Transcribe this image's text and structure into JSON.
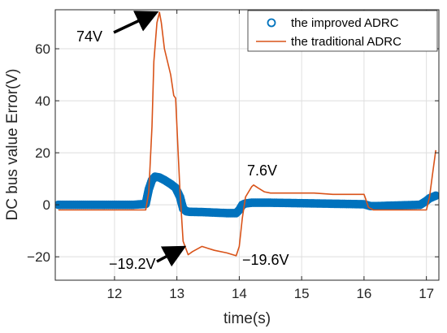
{
  "chart_data": {
    "type": "line",
    "xlabel": "time(s)",
    "ylabel": "DC bus value Error(V)",
    "xlim": [
      11.05,
      17.2
    ],
    "ylim": [
      -29,
      75
    ],
    "xticks": [
      12,
      13,
      14,
      15,
      16,
      17
    ],
    "yticks": [
      -20,
      0,
      20,
      40,
      60
    ],
    "xtick_labels": [
      "12",
      "13",
      "14",
      "15",
      "16",
      "17"
    ],
    "ytick_labels": [
      "−20",
      "0",
      "20",
      "40",
      "60"
    ],
    "grid": true,
    "legend_position": "top-right",
    "colors": {
      "improved": "#0072BD",
      "traditional": "#D95319",
      "grid": "#dedede",
      "axes": "#262626"
    },
    "series": [
      {
        "name": "the improved ADRC",
        "marker": "circle",
        "x": [
          11.1,
          11.5,
          12.0,
          12.3,
          12.5,
          12.55,
          12.6,
          12.65,
          12.72,
          12.8,
          12.9,
          12.98,
          13.05,
          13.1,
          13.15,
          13.2,
          13.4,
          13.6,
          13.8,
          13.95,
          14.0,
          14.05,
          14.1,
          14.2,
          14.5,
          15.0,
          15.5,
          16.0,
          16.1,
          16.2,
          16.5,
          16.9,
          17.0,
          17.05,
          17.1,
          17.15
        ],
        "y": [
          0,
          0,
          0,
          0,
          0.3,
          6,
          9.5,
          10.8,
          10.5,
          9.5,
          8,
          6.5,
          3,
          -1.5,
          -2.5,
          -2.7,
          -2.8,
          -3,
          -3.2,
          -3.2,
          -2,
          0,
          0.5,
          0.8,
          0.8,
          0.6,
          0.4,
          0.2,
          -0.5,
          -0.5,
          -0.3,
          0,
          1.5,
          2.5,
          3,
          3.5
        ]
      },
      {
        "name": "the traditional ADRC",
        "marker": "none",
        "x": [
          11.1,
          11.5,
          12.0,
          12.3,
          12.5,
          12.55,
          12.6,
          12.63,
          12.68,
          12.72,
          12.75,
          12.8,
          12.9,
          12.95,
          12.98,
          13.02,
          13.05,
          13.1,
          13.18,
          13.25,
          13.4,
          13.6,
          13.8,
          13.95,
          14.0,
          14.05,
          14.1,
          14.2,
          14.23,
          14.3,
          14.4,
          14.5,
          14.8,
          15.2,
          15.5,
          15.8,
          16.0,
          16.03,
          16.07,
          16.15,
          16.5,
          16.9,
          17.0,
          17.05,
          17.1,
          17.15
        ],
        "y": [
          -2,
          -2,
          -2,
          -2,
          -2,
          5,
          30,
          55,
          70,
          74,
          70,
          60,
          50,
          42,
          41,
          20,
          5,
          -14,
          -19.2,
          -18,
          -16,
          -17.5,
          -18.5,
          -19.6,
          -16,
          -5,
          3,
          7,
          7.6,
          6.5,
          5,
          4.5,
          4.5,
          4.5,
          4,
          4,
          4,
          2,
          -1,
          -2,
          -2,
          -2,
          -2,
          3,
          12,
          21
        ]
      }
    ],
    "annotations": [
      {
        "text": "74V",
        "at": [
          12.72,
          74
        ]
      },
      {
        "text": "7.6V",
        "at": [
          14.23,
          7.6
        ]
      },
      {
        "text": "−19.2V",
        "at": [
          13.18,
          -19.2
        ]
      },
      {
        "text": "−19.6V",
        "at": [
          13.95,
          -19.6
        ]
      }
    ]
  }
}
